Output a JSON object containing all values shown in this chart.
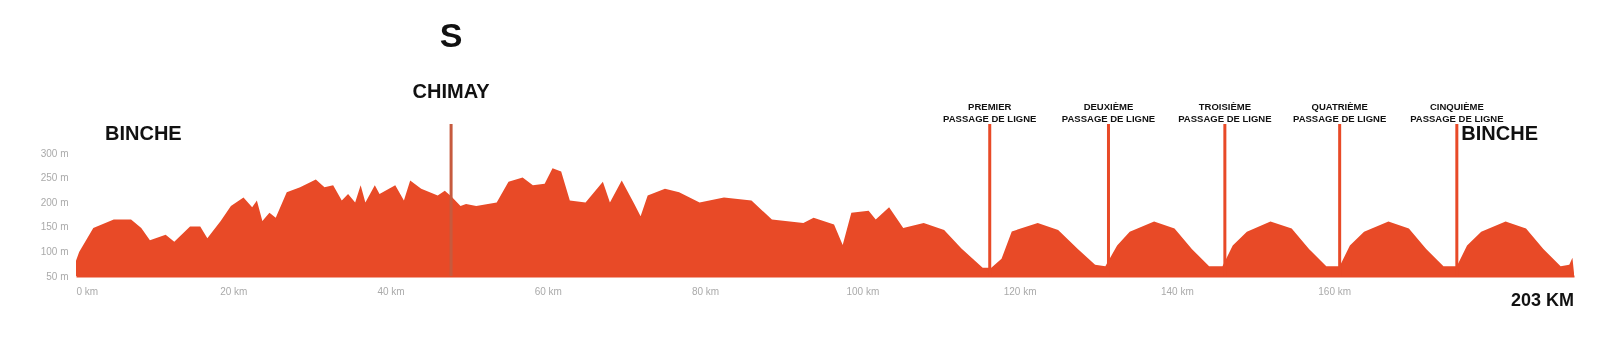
{
  "chart_data": {
    "type": "area",
    "color": "#e84a27",
    "x": [
      0,
      0.4,
      2.2,
      4.8,
      7,
      8.3,
      9.4,
      11.4,
      12.5,
      14.5,
      15.8,
      16.7,
      18.4,
      19.7,
      21.3,
      22.4,
      23,
      23.7,
      24.6,
      25.4,
      26.8,
      28.5,
      30.5,
      31.6,
      32.7,
      33.8,
      34.6,
      35.5,
      36.2,
      36.8,
      38,
      38.6,
      40.6,
      41.7,
      42.5,
      43.9,
      46,
      46.9,
      47.8,
      48.9,
      49.6,
      50.9,
      53.5,
      55,
      56.8,
      58.1,
      59.6,
      60.6,
      61.7,
      62.8,
      64.8,
      67,
      67.9,
      69.4,
      71,
      71.8,
      72.7,
      74.9,
      76.7,
      79.3,
      82.4,
      85.9,
      88.5,
      92.5,
      93.8,
      96.4,
      97.5,
      98.6,
      100.8,
      101.7,
      103.4,
      105.2,
      107.8,
      110.4,
      112.6,
      115.3,
      116.4,
      117.7,
      119,
      122.3,
      124.9,
      127.4,
      129.6,
      130.9,
      132.4,
      134,
      137.1,
      139.7,
      141.9,
      144.1,
      145.8,
      147.1,
      148.9,
      151.9,
      154.6,
      156.8,
      159,
      160.7,
      162,
      163.8,
      166.9,
      169.5,
      171.7,
      173.9,
      175.6,
      176.9,
      178.7,
      181.8,
      184.4,
      186.6,
      188.8,
      189.9,
      190.3,
      190.5
    ],
    "values": [
      81,
      99,
      148,
      165,
      165,
      148,
      123,
      134,
      120,
      151,
      151,
      127,
      162,
      193,
      210,
      190,
      204,
      162,
      179,
      169,
      221,
      231,
      247,
      231,
      235,
      204,
      217,
      200,
      235,
      200,
      235,
      217,
      235,
      204,
      245,
      228,
      214,
      224,
      211,
      193,
      197,
      193,
      200,
      242,
      251,
      235,
      238,
      270,
      263,
      204,
      200,
      242,
      200,
      245,
      197,
      172,
      214,
      228,
      221,
      200,
      210,
      204,
      165,
      158,
      169,
      155,
      113,
      179,
      183,
      165,
      190,
      148,
      158,
      144,
      106,
      67,
      67,
      85,
      141,
      158,
      144,
      105,
      73,
      70,
      112,
      140,
      161,
      147,
      105,
      70,
      70,
      112,
      140,
      161,
      147,
      105,
      70,
      70,
      112,
      140,
      161,
      147,
      105,
      70,
      70,
      112,
      140,
      161,
      147,
      105,
      70,
      73,
      87,
      56
    ],
    "xlim": [
      0,
      190.5
    ],
    "ylim": [
      50,
      360
    ],
    "xticks": [
      {
        "value": 0,
        "label": "0 km"
      },
      {
        "value": 20,
        "label": "20 km"
      },
      {
        "value": 40,
        "label": "40 km"
      },
      {
        "value": 60,
        "label": "60 km"
      },
      {
        "value": 80,
        "label": "80 km"
      },
      {
        "value": 100,
        "label": "100 km"
      },
      {
        "value": 120,
        "label": "120 km"
      },
      {
        "value": 140,
        "label": "140 km"
      },
      {
        "value": 160,
        "label": "160 km"
      }
    ],
    "yticks": [
      {
        "value": 50,
        "label": "50 m"
      },
      {
        "value": 100,
        "label": "100 m"
      },
      {
        "value": 150,
        "label": "150 m"
      },
      {
        "value": 200,
        "label": "200 m"
      },
      {
        "value": 250,
        "label": "250 m"
      },
      {
        "value": 300,
        "label": "300 m"
      }
    ],
    "grid": false,
    "ref_lines": [
      {
        "axis": "x",
        "value": 47.7,
        "label": "CHIMAY",
        "color": "#c65a3e"
      },
      {
        "axis": "x",
        "value": 116.2,
        "label": "PREMIER\nPASSAGE DE LIGNE",
        "color": "#e84a27"
      },
      {
        "axis": "x",
        "value": 131.3,
        "label": "DEUXIÈME\nPASSAGE DE LIGNE",
        "color": "#e84a27"
      },
      {
        "axis": "x",
        "value": 146.1,
        "label": "TROISIÈME\nPASSAGE DE LIGNE",
        "color": "#e84a27"
      },
      {
        "axis": "x",
        "value": 160.7,
        "label": "QUATRIÈME\nPASSAGE DE LIGNE",
        "color": "#e84a27"
      },
      {
        "axis": "x",
        "value": 175.6,
        "label": "CINQUIÈME\nPASSAGE DE LIGNE",
        "color": "#e84a27"
      }
    ],
    "annotations": [
      "S",
      "BINCHE",
      "BINCHE",
      "203 KM"
    ]
  }
}
